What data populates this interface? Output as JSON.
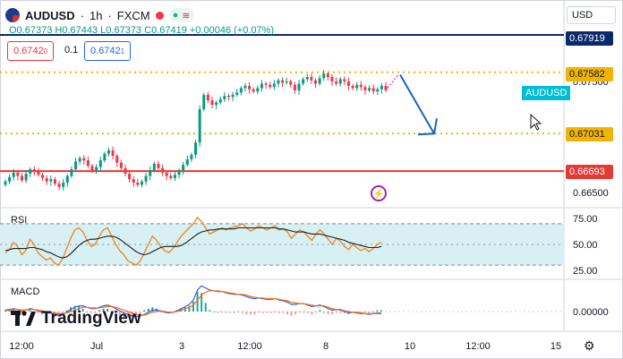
{
  "header": {
    "symbol": "AUDUSD",
    "interval": "1h",
    "exchange": "FXCM",
    "separator": "·",
    "open": "O0.67373",
    "high": "H0.67443",
    "low": "L0.67373",
    "close": "C0.67419",
    "change": "+0.00046 (+0.07%)",
    "sell_price": "0.6742",
    "sell_sup": "0",
    "buy_price": "0.6742",
    "buy_sup": "1",
    "spread": "0.1",
    "currency": "USD"
  },
  "price_labels": {
    "l1": "0.67919",
    "l2": "0.67582",
    "l3": "0.67031",
    "l4": "0.66693",
    "series_label": "AUDUSD"
  },
  "colors": {
    "up": "#089981",
    "down": "#f23645",
    "navy": "#0b2a6b",
    "gold": "#f0b400",
    "red_line": "#e53935",
    "arrow": "#1565c0",
    "rsi_line": "#ef8a2b",
    "rsi_ma": "#1e1e1e",
    "rsi_band": "#d7f0f3",
    "macd": "#2962ff",
    "signal": "#ff6d00",
    "hist": "#26a69a"
  },
  "panes": {
    "rsi_label": "RSI",
    "macd_label": "MACD"
  },
  "brand": "TradingView",
  "chart_data": [
    {
      "type": "candlestick",
      "symbol": "AUDUSD",
      "interval": "1h",
      "y_ticks": [
        "0.67500",
        "0.67000",
        "0.66500"
      ],
      "ylim": [
        0.6638,
        0.6812
      ],
      "x_ticks": [
        "12:00",
        "Jul",
        "3",
        "12:00",
        "8",
        "10",
        "12:00",
        "15"
      ],
      "levels": [
        {
          "value": 0.67919,
          "style": "solid",
          "color": "navy"
        },
        {
          "value": 0.67582,
          "style": "dotted",
          "color": "gold"
        },
        {
          "value": 0.67031,
          "style": "dotted",
          "color": "gold"
        },
        {
          "value": 0.66693,
          "style": "solid",
          "color": "red"
        }
      ],
      "projection": {
        "from": 0.6756,
        "to": 0.6703,
        "direction": "down"
      },
      "closes": [
        0.666,
        0.6664,
        0.6668,
        0.6665,
        0.6661,
        0.6667,
        0.6671,
        0.6669,
        0.6666,
        0.6663,
        0.666,
        0.6662,
        0.6658,
        0.6655,
        0.6659,
        0.6665,
        0.6671,
        0.6678,
        0.6681,
        0.6679,
        0.6674,
        0.667,
        0.6673,
        0.6679,
        0.6685,
        0.6688,
        0.6683,
        0.6677,
        0.6672,
        0.6667,
        0.6662,
        0.6659,
        0.6657,
        0.666,
        0.6665,
        0.667,
        0.6676,
        0.6672,
        0.6668,
        0.6665,
        0.6663,
        0.6666,
        0.667,
        0.6675,
        0.668,
        0.6684,
        0.6695,
        0.6725,
        0.6738,
        0.6733,
        0.6729,
        0.6731,
        0.6734,
        0.6737,
        0.6736,
        0.6738,
        0.674,
        0.6744,
        0.6746,
        0.6743,
        0.6741,
        0.6744,
        0.6748,
        0.6747,
        0.6745,
        0.6748,
        0.6751,
        0.6749,
        0.675,
        0.6747,
        0.6742,
        0.6748,
        0.6752,
        0.6754,
        0.6751,
        0.6748,
        0.6753,
        0.6757,
        0.6754,
        0.675,
        0.6748,
        0.6752,
        0.675,
        0.6746,
        0.6744,
        0.6747,
        0.6745,
        0.6742,
        0.6744,
        0.6741,
        0.6743,
        0.6746,
        0.6742
      ]
    },
    {
      "type": "line",
      "name": "RSI",
      "y_ticks": [
        "75.00",
        "50.00",
        "25.00"
      ],
      "ylim": [
        18,
        82
      ],
      "band": [
        30,
        70
      ],
      "series": [
        {
          "name": "RSI",
          "values": [
            42,
            45,
            52,
            48,
            40,
            44,
            55,
            50,
            42,
            38,
            35,
            37,
            32,
            30,
            36,
            46,
            56,
            64,
            66,
            62,
            54,
            48,
            50,
            58,
            64,
            66,
            58,
            50,
            44,
            40,
            34,
            32,
            30,
            34,
            42,
            50,
            58,
            54,
            48,
            44,
            42,
            46,
            52,
            58,
            62,
            66,
            70,
            76,
            72,
            66,
            60,
            62,
            64,
            66,
            64,
            66,
            67,
            68,
            70,
            66,
            63,
            65,
            68,
            66,
            64,
            66,
            68,
            64,
            65,
            62,
            56,
            60,
            64,
            62,
            58,
            54,
            60,
            64,
            60,
            55,
            50,
            56,
            53,
            48,
            45,
            50,
            47,
            44,
            46,
            43,
            46,
            50,
            52
          ]
        },
        {
          "name": "RSI-based MA",
          "values": [
            44,
            45,
            46,
            46,
            46,
            46,
            47,
            47,
            46,
            45,
            43,
            42,
            40,
            38,
            37,
            38,
            41,
            45,
            49,
            52,
            54,
            55,
            55,
            56,
            57,
            58,
            58,
            57,
            55,
            52,
            49,
            46,
            43,
            41,
            40,
            41,
            43,
            45,
            47,
            48,
            48,
            48,
            48,
            49,
            51,
            54,
            57,
            60,
            62,
            63,
            64,
            64,
            65,
            65,
            65,
            65,
            65,
            66,
            66,
            66,
            66,
            66,
            66,
            66,
            66,
            66,
            66,
            65,
            65,
            64,
            63,
            62,
            62,
            62,
            61,
            60,
            60,
            60,
            59,
            58,
            57,
            56,
            55,
            54,
            52,
            51,
            50,
            49,
            48,
            47,
            47,
            47,
            48
          ]
        }
      ]
    },
    {
      "type": "line",
      "name": "MACD",
      "y_ticks": [
        "0.00000"
      ],
      "series": [
        {
          "name": "MACD",
          "values": [
            0.2,
            0.3,
            0.4,
            0.3,
            0.1,
            0.2,
            0.4,
            0.3,
            0.1,
            -0.1,
            -0.2,
            -0.2,
            -0.4,
            -0.5,
            -0.4,
            -0.1,
            0.3,
            0.6,
            0.8,
            0.8,
            0.6,
            0.4,
            0.4,
            0.6,
            0.8,
            0.9,
            0.7,
            0.4,
            0.1,
            -0.2,
            -0.4,
            -0.6,
            -0.7,
            -0.6,
            -0.4,
            -0.1,
            0.2,
            0.2,
            0.1,
            -0.1,
            -0.2,
            -0.1,
            0.1,
            0.4,
            0.7,
            1.0,
            1.6,
            3.0,
            3.6,
            3.3,
            3.0,
            2.9,
            2.8,
            2.8,
            2.6,
            2.5,
            2.4,
            2.4,
            2.3,
            2.1,
            1.9,
            1.8,
            1.9,
            1.8,
            1.7,
            1.7,
            1.8,
            1.6,
            1.5,
            1.3,
            1.0,
            1.0,
            1.1,
            1.1,
            0.9,
            0.7,
            0.8,
            0.9,
            0.7,
            0.4,
            0.2,
            0.3,
            0.2,
            0.0,
            -0.2,
            -0.1,
            -0.2,
            -0.3,
            -0.3,
            -0.4,
            -0.3,
            -0.2,
            -0.2
          ]
        },
        {
          "name": "Signal",
          "values": [
            0.1,
            0.2,
            0.3,
            0.3,
            0.2,
            0.2,
            0.3,
            0.3,
            0.2,
            0.1,
            0.0,
            -0.1,
            -0.2,
            -0.3,
            -0.3,
            -0.2,
            0.0,
            0.2,
            0.4,
            0.6,
            0.6,
            0.5,
            0.5,
            0.5,
            0.6,
            0.7,
            0.7,
            0.6,
            0.4,
            0.2,
            0.0,
            -0.2,
            -0.4,
            -0.5,
            -0.5,
            -0.3,
            -0.1,
            0.0,
            0.1,
            0.0,
            -0.1,
            -0.1,
            0.0,
            0.2,
            0.4,
            0.6,
            0.9,
            1.6,
            2.3,
            2.7,
            2.9,
            2.9,
            2.9,
            2.8,
            2.7,
            2.6,
            2.5,
            2.4,
            2.4,
            2.3,
            2.1,
            2.0,
            1.9,
            1.9,
            1.8,
            1.8,
            1.8,
            1.7,
            1.6,
            1.5,
            1.3,
            1.2,
            1.1,
            1.1,
            1.0,
            0.9,
            0.8,
            0.8,
            0.8,
            0.6,
            0.4,
            0.3,
            0.3,
            0.1,
            0.0,
            -0.1,
            -0.1,
            -0.2,
            -0.3,
            -0.3,
            -0.3,
            -0.3,
            -0.3
          ]
        }
      ]
    }
  ]
}
